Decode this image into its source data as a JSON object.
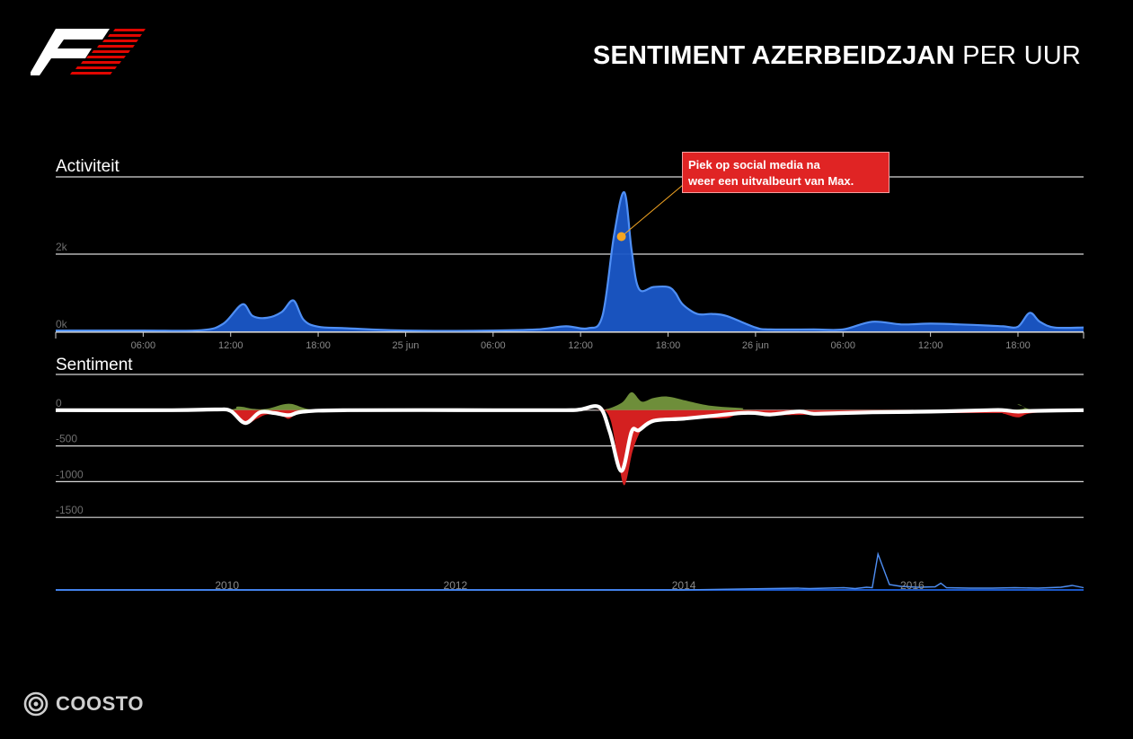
{
  "header": {
    "title_bold": "SENTIMENT AZERBEIDZJAN",
    "title_light": "PER UUR"
  },
  "footer": {
    "brand": "COOSTO"
  },
  "colors": {
    "activity": "#1a57c8",
    "activity_line": "#4f8ff5",
    "positive": "#6e8e3a",
    "negative": "#d42020",
    "net": "#ffffff",
    "annotation": "#e02424",
    "annotation_dot": "#f5a623"
  },
  "annotation": {
    "line1": "Piek op social media na",
    "line2": "weer een uitvalbeurt van Max."
  },
  "chart_data": [
    {
      "type": "area",
      "title": "Activiteit",
      "x_ticks": [
        "06:00",
        "12:00",
        "18:00",
        "25 jun",
        "06:00",
        "12:00",
        "18:00",
        "26 jun",
        "06:00",
        "12:00",
        "18:00"
      ],
      "x_hours_range": [
        0,
        70.5
      ],
      "x_tick_hours": [
        6,
        12,
        18,
        24,
        30,
        36,
        42,
        48,
        54,
        60,
        66
      ],
      "y_ticks": [
        {
          "value": 0,
          "label": "0k"
        },
        {
          "value": 2000,
          "label": "2k"
        }
      ],
      "ylim": [
        0,
        4000
      ],
      "series": [
        {
          "x": [
            0,
            6,
            10,
            11.5,
            12.8,
            13.5,
            14.5,
            15.5,
            16.3,
            17,
            18,
            20,
            24,
            30,
            33,
            35,
            36.5,
            37.5,
            38.3,
            39,
            39.5,
            40,
            41,
            42,
            42.5,
            43,
            44,
            45,
            46,
            48,
            49,
            52,
            54,
            56,
            58,
            60,
            62,
            64,
            65,
            66,
            66.8,
            67.5,
            68.5,
            70.5
          ],
          "values": [
            20,
            20,
            30,
            200,
            700,
            400,
            350,
            500,
            800,
            300,
            120,
            80,
            20,
            20,
            50,
            130,
            80,
            400,
            2500,
            3600,
            2100,
            1100,
            1150,
            1150,
            1000,
            700,
            450,
            450,
            400,
            100,
            50,
            50,
            50,
            250,
            180,
            200,
            180,
            150,
            130,
            120,
            480,
            250,
            100,
            100
          ]
        }
      ]
    },
    {
      "type": "area",
      "title": "Sentiment",
      "y_ticks": [
        0,
        -500,
        -1000,
        -1500
      ],
      "ylim": [
        -2000,
        500
      ],
      "series": [
        {
          "name": "positive",
          "x": [
            0,
            11,
            12.5,
            13.5,
            14.5,
            16,
            17.5,
            20,
            36,
            37.5,
            38.8,
            39.5,
            40.2,
            41,
            42,
            43.5,
            45,
            47,
            49,
            65,
            66,
            67,
            70.5
          ],
          "values": [
            0,
            0,
            50,
            20,
            20,
            90,
            10,
            0,
            0,
            0,
            100,
            250,
            120,
            170,
            190,
            120,
            60,
            30,
            0,
            0,
            80,
            10,
            0
          ]
        },
        {
          "name": "negative",
          "x": [
            0,
            11,
            12.3,
            13,
            13.8,
            14.5,
            15.5,
            16,
            16.6,
            17.5,
            20,
            36,
            37.8,
            38.5,
            39,
            39.6,
            40.3,
            41,
            42.5,
            44,
            46,
            47,
            49,
            52,
            54,
            64,
            65,
            66,
            67,
            70.5
          ],
          "values": [
            0,
            0,
            -60,
            -200,
            -120,
            -60,
            -80,
            -120,
            -40,
            0,
            0,
            0,
            -30,
            -600,
            -1050,
            -550,
            -230,
            -160,
            -110,
            -110,
            -110,
            -50,
            -70,
            -60,
            -40,
            -40,
            -50,
            -100,
            -40,
            0
          ]
        },
        {
          "name": "net",
          "x": [
            0,
            8,
            11,
            12,
            13,
            14,
            15,
            16,
            17,
            20,
            30,
            35,
            36,
            37.3,
            38,
            38.8,
            39.5,
            40,
            41,
            43,
            45,
            47,
            48,
            49,
            51,
            52,
            54,
            56,
            60,
            64,
            65,
            66,
            67,
            70.5
          ],
          "values": [
            0,
            0,
            10,
            -10,
            -180,
            -30,
            -40,
            -70,
            -20,
            0,
            0,
            0,
            10,
            40,
            -300,
            -850,
            -300,
            -280,
            -150,
            -120,
            -80,
            -40,
            -40,
            -60,
            -20,
            -50,
            -40,
            -30,
            -20,
            0,
            0,
            -20,
            -10,
            0
          ]
        }
      ]
    },
    {
      "type": "line",
      "title": "",
      "x_ticks": [
        "2010",
        "2012",
        "2014",
        "2016"
      ],
      "x_years_range": [
        2009.0,
        2018.0
      ],
      "series": [
        {
          "x": [
            2009.0,
            2014.5,
            2015.0,
            2015.5,
            2015.6,
            2015.9,
            2016.0,
            2016.1,
            2016.15,
            2016.2,
            2016.3,
            2016.4,
            2016.55,
            2016.7,
            2016.75,
            2016.8,
            2017.0,
            2017.2,
            2017.4,
            2017.6,
            2017.8,
            2017.9,
            2018.0
          ],
          "values": [
            0,
            0,
            2,
            4,
            3,
            5,
            3,
            6,
            5,
            80,
            12,
            8,
            6,
            7,
            15,
            5,
            4,
            4,
            5,
            4,
            6,
            10,
            5
          ]
        }
      ]
    }
  ]
}
